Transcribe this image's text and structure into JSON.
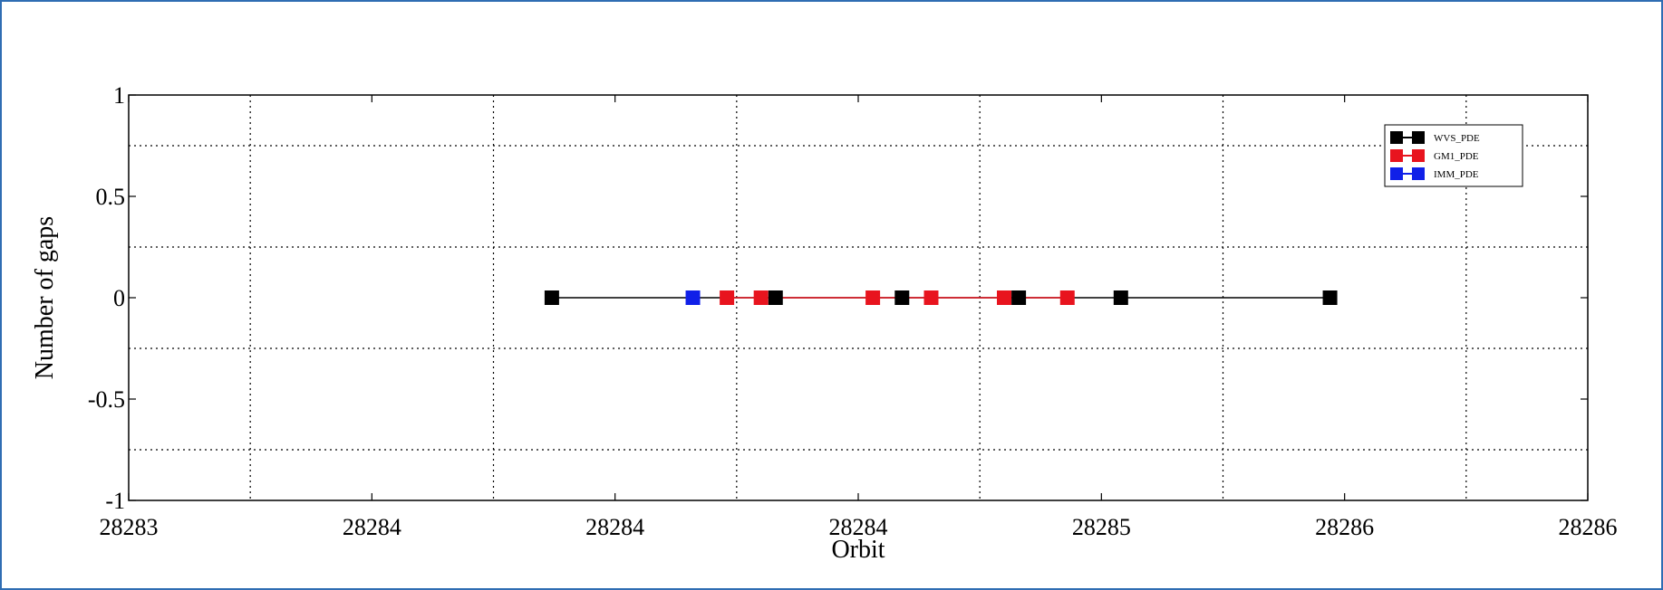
{
  "chart_data": {
    "type": "line",
    "title": "",
    "xlabel": "Orbit",
    "ylabel": "Number of gaps",
    "xlim": [
      28283.0,
      28286.0
    ],
    "ylim": [
      -1,
      1
    ],
    "x_tick_values": [
      28283.0,
      28283.5,
      28284.0,
      28284.5,
      28285.0,
      28285.5,
      28286.0
    ],
    "x_tick_labels": [
      "28283",
      "28284",
      "28284",
      "28284",
      "28285",
      "28286",
      "28286"
    ],
    "y_tick_values": [
      -1,
      -0.5,
      0,
      0.5,
      1
    ],
    "y_tick_labels": [
      "-1",
      "-0.5",
      "0",
      "0.5",
      "1"
    ],
    "x_grid": [
      28283.25,
      28283.75,
      28284.25,
      28284.75,
      28285.25,
      28285.75
    ],
    "y_grid": [
      -0.75,
      -0.25,
      0.25,
      0.75
    ],
    "grid": true,
    "legend_position": "top-right",
    "series": [
      {
        "name": "WVS_PDE",
        "color": "#000000",
        "x": [
          28283.87,
          28284.33,
          28284.59,
          28284.83,
          28285.04,
          28285.47
        ],
        "y": [
          0,
          0,
          0,
          0,
          0,
          0
        ]
      },
      {
        "name": "GM1_PDE",
        "color": "#e8141e",
        "x": [
          28284.23,
          28284.3,
          28284.53,
          28284.65,
          28284.8,
          28284.93
        ],
        "y": [
          0,
          0,
          0,
          0,
          0,
          0
        ]
      },
      {
        "name": "IMM_PDE",
        "color": "#1020e8",
        "x": [
          28284.16
        ],
        "y": [
          0
        ]
      }
    ]
  }
}
